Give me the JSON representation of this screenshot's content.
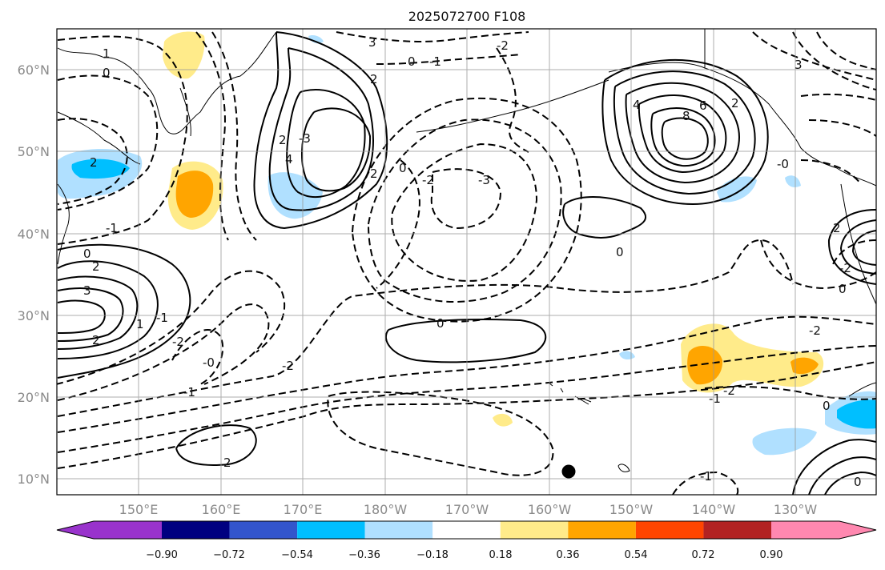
{
  "title": "2025072700 F108",
  "lat_labels": [
    "60°N",
    "50°N",
    "40°N",
    "30°N",
    "20°N",
    "10°N"
  ],
  "lon_labels": [
    "150°E",
    "160°E",
    "170°E",
    "180°W",
    "170°W",
    "160°W",
    "150°W",
    "140°W",
    "130°W"
  ],
  "colorbar": {
    "colors": [
      "#9933cc",
      "#000080",
      "#3355cc",
      "#00bfff",
      "#b0e0ff",
      "#ffffff",
      "#ffeb8a",
      "#ffa500",
      "#ff4500",
      "#b22222",
      "#ff88b0"
    ],
    "tick_labels": [
      "−0.90",
      "−0.72",
      "−0.54",
      "−0.36",
      "−0.18",
      "0.18",
      "0.36",
      "0.54",
      "0.72",
      "0.90"
    ]
  },
  "contour_labels": [
    "1",
    "0",
    "2",
    "-1",
    "2",
    "0",
    "-1",
    "1",
    "2",
    "3",
    "4",
    "2",
    "-2",
    "-3",
    "4",
    "6",
    "8",
    "-3",
    "-2",
    "0",
    "-1",
    "0",
    "2",
    "3",
    "2",
    "0",
    "0",
    "-2",
    "-1",
    "-2",
    "0",
    "0",
    "-2",
    "2",
    "-2",
    "-0",
    "-1",
    "2",
    "-1",
    "0",
    "-0",
    "-2",
    "2",
    "3"
  ],
  "marker": "station-dot"
}
